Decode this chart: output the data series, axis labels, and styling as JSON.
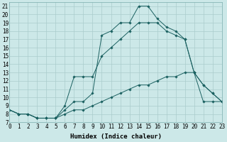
{
  "xlabel": "Humidex (Indice chaleur)",
  "bg_color": "#cce8e8",
  "grid_color": "#aacccc",
  "line_color": "#1a6060",
  "line1_x": [
    0,
    1,
    2,
    3,
    4,
    5,
    6,
    7,
    8,
    9,
    10,
    11,
    12,
    13,
    14,
    15,
    16,
    17,
    18,
    19,
    20,
    21,
    22,
    23
  ],
  "line1_y": [
    8.5,
    8.0,
    8.0,
    7.5,
    7.5,
    7.5,
    8.0,
    8.5,
    8.5,
    9.0,
    9.5,
    10.0,
    10.5,
    11.0,
    11.5,
    11.5,
    12.0,
    12.5,
    12.5,
    13.0,
    13.0,
    9.5,
    9.5,
    9.5
  ],
  "line2_x": [
    0,
    1,
    2,
    3,
    4,
    5,
    6,
    7,
    8,
    9,
    10,
    11,
    12,
    13,
    14,
    15,
    16,
    17,
    18,
    19,
    20,
    21,
    22,
    23
  ],
  "line2_y": [
    8.5,
    8.0,
    8.0,
    7.5,
    7.5,
    7.5,
    8.5,
    9.5,
    9.5,
    10.5,
    17.5,
    18.0,
    19.0,
    19.0,
    21.0,
    21.0,
    19.5,
    18.5,
    18.0,
    17.0,
    13.0,
    11.5,
    10.5,
    9.5
  ],
  "line3_x": [
    0,
    1,
    2,
    3,
    4,
    5,
    6,
    7,
    8,
    9,
    10,
    11,
    12,
    13,
    14,
    15,
    16,
    17,
    18,
    19,
    20,
    21,
    22,
    23
  ],
  "line3_y": [
    8.5,
    8.0,
    8.0,
    7.5,
    7.5,
    7.5,
    9.0,
    12.5,
    12.5,
    12.5,
    15.0,
    16.0,
    17.0,
    18.0,
    19.0,
    19.0,
    19.0,
    18.0,
    17.5,
    17.0,
    13.0,
    11.5,
    10.5,
    9.5
  ],
  "xlim": [
    0,
    23
  ],
  "ylim": [
    7,
    21.5
  ],
  "xticks": [
    0,
    1,
    2,
    3,
    4,
    5,
    6,
    7,
    8,
    9,
    10,
    11,
    12,
    13,
    14,
    15,
    16,
    17,
    18,
    19,
    20,
    21,
    22,
    23
  ],
  "yticks": [
    7,
    8,
    9,
    10,
    11,
    12,
    13,
    14,
    15,
    16,
    17,
    18,
    19,
    20,
    21
  ],
  "tick_fontsize": 5.5,
  "xlabel_fontsize": 6.5
}
